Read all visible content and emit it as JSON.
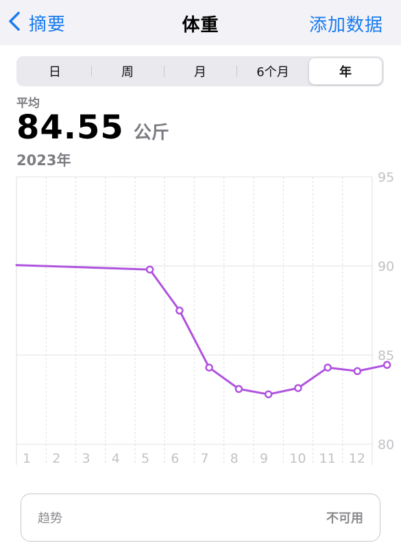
{
  "nav": {
    "back_label": "摘要",
    "title": "体重",
    "action_label": "添加数据"
  },
  "segments": [
    "日",
    "周",
    "月",
    "6个月",
    "年"
  ],
  "selected_segment": "年",
  "summary": {
    "label": "平均",
    "value": "84.55",
    "unit": "公斤",
    "period": "2023年"
  },
  "chart_data": {
    "type": "line",
    "x_tick_labels": [
      "1",
      "2",
      "3",
      "4",
      "5",
      "6",
      "7",
      "8",
      "9",
      "10",
      "11",
      "12"
    ],
    "y_tick_labels": [
      "95",
      "90",
      "85",
      "80"
    ],
    "ylim": [
      80,
      95
    ],
    "color": "#af52de",
    "series": [
      {
        "points": [
          {
            "x": 0.0,
            "y": 90.05
          },
          {
            "x": 4.5,
            "y": 89.8
          },
          {
            "x": 5.5,
            "y": 87.5
          },
          {
            "x": 6.5,
            "y": 84.3
          },
          {
            "x": 7.5,
            "y": 83.1
          },
          {
            "x": 8.5,
            "y": 82.8
          },
          {
            "x": 9.5,
            "y": 83.15
          },
          {
            "x": 10.5,
            "y": 84.3
          },
          {
            "x": 11.5,
            "y": 84.1
          },
          {
            "x": 12.5,
            "y": 84.45
          }
        ],
        "markers_from_index": 1
      }
    ],
    "grid": true
  },
  "trend": {
    "label": "趋势",
    "value": "不可用"
  }
}
